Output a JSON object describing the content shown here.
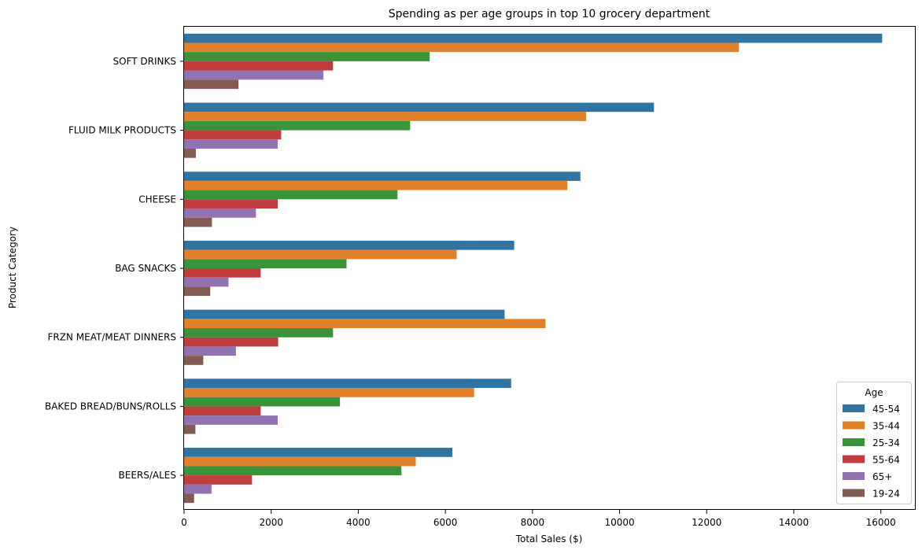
{
  "chart_data": {
    "type": "bar",
    "orientation": "horizontal",
    "title": "Spending as per age groups in top 10 grocery department",
    "xlabel": "Total Sales ($)",
    "ylabel": "Product Category",
    "xlim": [
      0,
      16800
    ],
    "xticks": [
      0,
      2000,
      4000,
      6000,
      8000,
      10000,
      12000,
      14000,
      16000
    ],
    "grid": false,
    "legend_title": "Age",
    "legend_position": "lower-right",
    "categories": [
      "SOFT DRINKS",
      "FLUID MILK PRODUCTS",
      "CHEESE",
      "BAG SNACKS",
      "FRZN MEAT/MEAT DINNERS",
      "BAKED BREAD/BUNS/ROLLS",
      "BEERS/ALES"
    ],
    "series": [
      {
        "name": "45-54",
        "color": "#3274a1",
        "values": [
          16030,
          10790,
          9100,
          7580,
          7360,
          7510,
          6160
        ]
      },
      {
        "name": "35-44",
        "color": "#e1812c",
        "values": [
          12740,
          9230,
          8800,
          6260,
          8300,
          6660,
          5320
        ]
      },
      {
        "name": "25-34",
        "color": "#3a923a",
        "values": [
          5640,
          5190,
          4900,
          3730,
          3420,
          3580,
          4990
        ]
      },
      {
        "name": "55-64",
        "color": "#c03d3e",
        "values": [
          3420,
          2230,
          2150,
          1760,
          2160,
          1760,
          1560
        ]
      },
      {
        "name": "65+",
        "color": "#9372b2",
        "values": [
          3200,
          2150,
          1650,
          1020,
          1190,
          2150,
          630
        ]
      },
      {
        "name": "19-24",
        "color": "#845b53",
        "values": [
          1250,
          270,
          640,
          600,
          440,
          260,
          230
        ]
      }
    ]
  }
}
